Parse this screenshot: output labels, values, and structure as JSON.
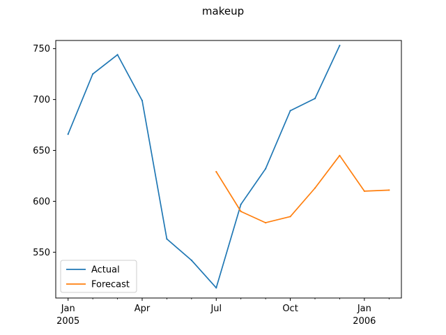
{
  "chart_data": {
    "type": "line",
    "title": "makeup",
    "xlabel": "",
    "ylabel": "",
    "x_ticks": [
      {
        "month": 0,
        "label": "Jan",
        "sublabel": "2005"
      },
      {
        "month": 3,
        "label": "Apr",
        "sublabel": ""
      },
      {
        "month": 6,
        "label": "Jul",
        "sublabel": ""
      },
      {
        "month": 9,
        "label": "Oct",
        "sublabel": ""
      },
      {
        "month": 12,
        "label": "Jan",
        "sublabel": "2006"
      }
    ],
    "x_minor_ticks": [
      1,
      2,
      4,
      5,
      7,
      8,
      10,
      11,
      13
    ],
    "xlim": [
      "2004-12",
      "2006-02"
    ],
    "ylim": [
      505,
      758
    ],
    "y_ticks": [
      550,
      600,
      650,
      700,
      750
    ],
    "legend_position": "lower-left",
    "series": [
      {
        "name": "Actual",
        "color": "#1f77b4",
        "x": [
          "2005-01",
          "2005-02",
          "2005-03",
          "2005-04",
          "2005-05",
          "2005-06",
          "2005-07",
          "2005-08",
          "2005-09",
          "2005-10",
          "2005-11",
          "2005-12"
        ],
        "values": [
          666,
          725,
          744,
          699,
          563,
          542,
          515,
          597,
          632,
          689,
          701,
          753
        ]
      },
      {
        "name": "Forecast",
        "color": "#ff7f0e",
        "x": [
          "2005-07",
          "2005-08",
          "2005-09",
          "2005-10",
          "2005-11",
          "2005-12",
          "2006-01",
          "2006-02"
        ],
        "values": [
          629,
          590,
          579,
          585,
          613,
          645,
          610,
          611
        ]
      }
    ]
  }
}
